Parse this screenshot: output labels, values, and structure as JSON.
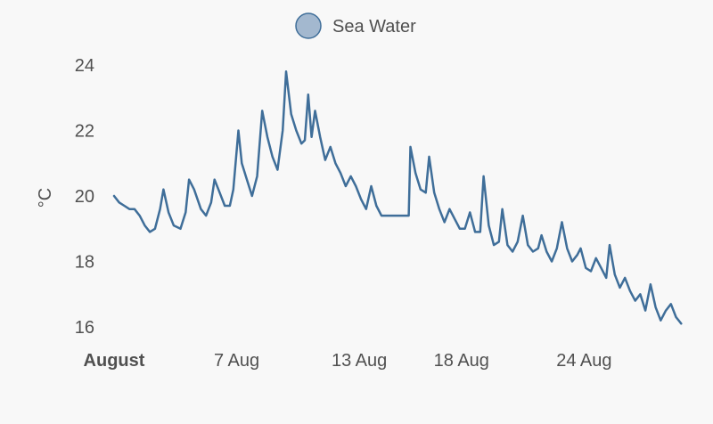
{
  "chart_data": {
    "type": "line",
    "title": "",
    "xlabel": "",
    "ylabel": "°C",
    "ylim": [
      16,
      24
    ],
    "xlim": [
      "2023-08-01",
      "2023-08-29"
    ],
    "grid": false,
    "legend_position": "top-center",
    "y_ticks": [
      "16",
      "18",
      "20",
      "22",
      "24"
    ],
    "x_ticks": [
      {
        "date": "2023-08-01",
        "label": "August",
        "bold": true
      },
      {
        "date": "2023-08-07",
        "label": "7 Aug",
        "bold": false
      },
      {
        "date": "2023-08-13",
        "label": "13 Aug",
        "bold": false
      },
      {
        "date": "2023-08-18",
        "label": "18 Aug",
        "bold": false
      },
      {
        "date": "2023-08-24",
        "label": "24 Aug",
        "bold": false
      }
    ],
    "series": [
      {
        "name": "Sea Water",
        "color": "#3f6e99",
        "marker_fill": "#a3b8cf",
        "points": [
          [
            "2023-08-01 00:00",
            20.0
          ],
          [
            "2023-08-01 06:00",
            19.8
          ],
          [
            "2023-08-01 12:00",
            19.7
          ],
          [
            "2023-08-01 18:00",
            19.6
          ],
          [
            "2023-08-02 00:00",
            19.6
          ],
          [
            "2023-08-02 06:00",
            19.4
          ],
          [
            "2023-08-02 12:00",
            19.1
          ],
          [
            "2023-08-02 18:00",
            18.9
          ],
          [
            "2023-08-03 00:00",
            19.0
          ],
          [
            "2023-08-03 06:00",
            19.6
          ],
          [
            "2023-08-03 10:00",
            20.2
          ],
          [
            "2023-08-03 16:00",
            19.5
          ],
          [
            "2023-08-03 22:00",
            19.1
          ],
          [
            "2023-08-04 06:00",
            19.0
          ],
          [
            "2023-08-04 12:00",
            19.5
          ],
          [
            "2023-08-04 16:00",
            20.5
          ],
          [
            "2023-08-04 22:00",
            20.2
          ],
          [
            "2023-08-05 06:00",
            19.6
          ],
          [
            "2023-08-05 12:00",
            19.4
          ],
          [
            "2023-08-05 18:00",
            19.8
          ],
          [
            "2023-08-05 22:00",
            20.5
          ],
          [
            "2023-08-06 04:00",
            20.1
          ],
          [
            "2023-08-06 10:00",
            19.7
          ],
          [
            "2023-08-06 16:00",
            19.7
          ],
          [
            "2023-08-06 20:00",
            20.2
          ],
          [
            "2023-08-07 02:00",
            22.0
          ],
          [
            "2023-08-07 06:00",
            21.0
          ],
          [
            "2023-08-07 12:00",
            20.5
          ],
          [
            "2023-08-07 18:00",
            20.0
          ],
          [
            "2023-08-08 00:00",
            20.6
          ],
          [
            "2023-08-08 06:00",
            22.6
          ],
          [
            "2023-08-08 12:00",
            21.8
          ],
          [
            "2023-08-08 18:00",
            21.2
          ],
          [
            "2023-08-09 00:00",
            20.8
          ],
          [
            "2023-08-09 06:00",
            22.0
          ],
          [
            "2023-08-09 10:00",
            23.8
          ],
          [
            "2023-08-09 16:00",
            22.5
          ],
          [
            "2023-08-09 22:00",
            22.0
          ],
          [
            "2023-08-10 04:00",
            21.6
          ],
          [
            "2023-08-10 08:00",
            21.7
          ],
          [
            "2023-08-10 12:00",
            23.1
          ],
          [
            "2023-08-10 16:00",
            21.8
          ],
          [
            "2023-08-10 20:00",
            22.6
          ],
          [
            "2023-08-11 02:00",
            21.8
          ],
          [
            "2023-08-11 08:00",
            21.1
          ],
          [
            "2023-08-11 14:00",
            21.5
          ],
          [
            "2023-08-11 20:00",
            21.0
          ],
          [
            "2023-08-12 02:00",
            20.7
          ],
          [
            "2023-08-12 08:00",
            20.3
          ],
          [
            "2023-08-12 14:00",
            20.6
          ],
          [
            "2023-08-12 20:00",
            20.3
          ],
          [
            "2023-08-13 02:00",
            19.9
          ],
          [
            "2023-08-13 08:00",
            19.6
          ],
          [
            "2023-08-13 14:00",
            20.3
          ],
          [
            "2023-08-13 20:00",
            19.7
          ],
          [
            "2023-08-14 02:00",
            19.4
          ],
          [
            "2023-08-15 10:00",
            19.4
          ],
          [
            "2023-08-15 12:00",
            21.5
          ],
          [
            "2023-08-15 18:00",
            20.7
          ],
          [
            "2023-08-16 00:00",
            20.2
          ],
          [
            "2023-08-16 06:00",
            20.1
          ],
          [
            "2023-08-16 10:00",
            21.2
          ],
          [
            "2023-08-16 16:00",
            20.1
          ],
          [
            "2023-08-16 22:00",
            19.6
          ],
          [
            "2023-08-17 04:00",
            19.2
          ],
          [
            "2023-08-17 10:00",
            19.6
          ],
          [
            "2023-08-17 16:00",
            19.3
          ],
          [
            "2023-08-17 22:00",
            19.0
          ],
          [
            "2023-08-18 04:00",
            19.0
          ],
          [
            "2023-08-18 10:00",
            19.5
          ],
          [
            "2023-08-18 16:00",
            18.9
          ],
          [
            "2023-08-18 22:00",
            18.9
          ],
          [
            "2023-08-19 02:00",
            20.6
          ],
          [
            "2023-08-19 08:00",
            19.1
          ],
          [
            "2023-08-19 14:00",
            18.5
          ],
          [
            "2023-08-19 20:00",
            18.6
          ],
          [
            "2023-08-20 00:00",
            19.6
          ],
          [
            "2023-08-20 06:00",
            18.5
          ],
          [
            "2023-08-20 12:00",
            18.3
          ],
          [
            "2023-08-20 18:00",
            18.6
          ],
          [
            "2023-08-21 00:00",
            19.4
          ],
          [
            "2023-08-21 06:00",
            18.5
          ],
          [
            "2023-08-21 12:00",
            18.3
          ],
          [
            "2023-08-21 18:00",
            18.4
          ],
          [
            "2023-08-21 22:00",
            18.8
          ],
          [
            "2023-08-22 04:00",
            18.3
          ],
          [
            "2023-08-22 10:00",
            18.0
          ],
          [
            "2023-08-22 16:00",
            18.4
          ],
          [
            "2023-08-22 22:00",
            19.2
          ],
          [
            "2023-08-23 04:00",
            18.4
          ],
          [
            "2023-08-23 10:00",
            18.0
          ],
          [
            "2023-08-23 16:00",
            18.2
          ],
          [
            "2023-08-23 20:00",
            18.4
          ],
          [
            "2023-08-24 02:00",
            17.8
          ],
          [
            "2023-08-24 08:00",
            17.7
          ],
          [
            "2023-08-24 14:00",
            18.1
          ],
          [
            "2023-08-24 20:00",
            17.8
          ],
          [
            "2023-08-25 02:00",
            17.5
          ],
          [
            "2023-08-25 06:00",
            18.5
          ],
          [
            "2023-08-25 12:00",
            17.6
          ],
          [
            "2023-08-25 18:00",
            17.2
          ],
          [
            "2023-08-26 00:00",
            17.5
          ],
          [
            "2023-08-26 06:00",
            17.1
          ],
          [
            "2023-08-26 12:00",
            16.8
          ],
          [
            "2023-08-26 18:00",
            17.0
          ],
          [
            "2023-08-27 00:00",
            16.5
          ],
          [
            "2023-08-27 06:00",
            17.3
          ],
          [
            "2023-08-27 12:00",
            16.6
          ],
          [
            "2023-08-27 18:00",
            16.2
          ],
          [
            "2023-08-28 00:00",
            16.5
          ],
          [
            "2023-08-28 06:00",
            16.7
          ],
          [
            "2023-08-28 12:00",
            16.3
          ],
          [
            "2023-08-28 18:00",
            16.1
          ]
        ]
      }
    ]
  }
}
